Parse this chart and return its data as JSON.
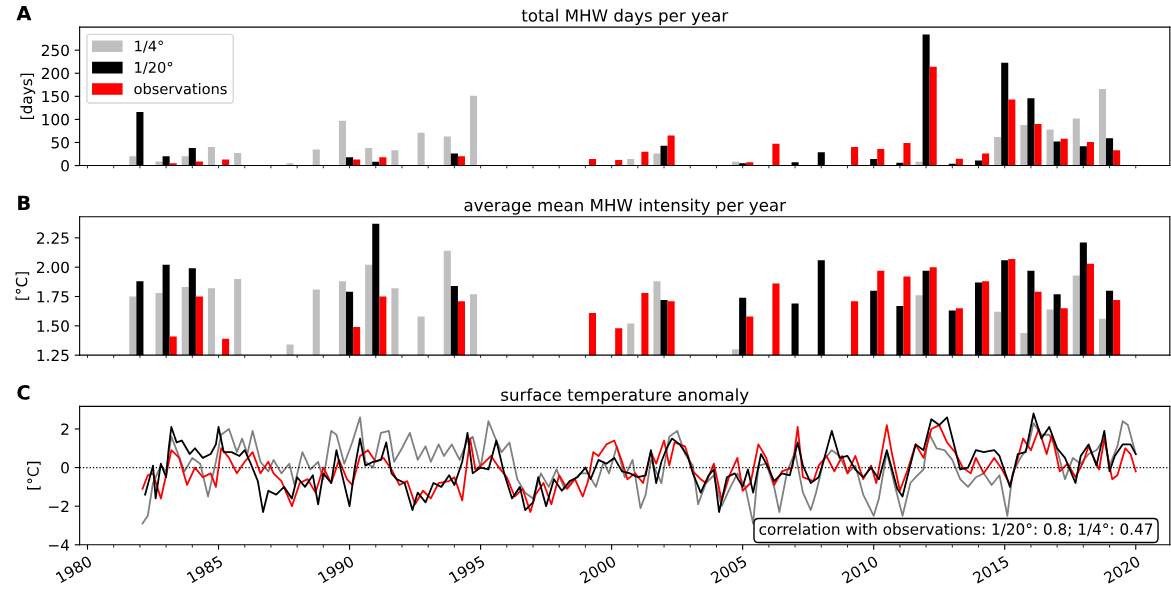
{
  "chart_data": [
    {
      "type": "bar",
      "title": "total MHW days per year",
      "ylabel": "[days]",
      "annotations": [
        "A"
      ],
      "x": [
        1982,
        1983,
        1984,
        1985,
        1986,
        1987,
        1988,
        1989,
        1990,
        1991,
        1992,
        1993,
        1994,
        1995,
        1996,
        1997,
        1998,
        1999,
        2000,
        2001,
        2002,
        2003,
        2004,
        2005,
        2006,
        2007,
        2008,
        2009,
        2010,
        2011,
        2012,
        2013,
        2014,
        2015,
        2016,
        2017,
        2018,
        2019
      ],
      "series": [
        {
          "name": "1/4°",
          "color": "#bfbfbf",
          "values": [
            20,
            9,
            20,
            40,
            27,
            null,
            5,
            35,
            97,
            38,
            33,
            71,
            63,
            151,
            null,
            null,
            null,
            null,
            null,
            14,
            26,
            null,
            null,
            8,
            null,
            null,
            null,
            null,
            null,
            null,
            8,
            null,
            null,
            62,
            88,
            78,
            102,
            166
          ]
        },
        {
          "name": "1/20°",
          "color": "#000000",
          "values": [
            116,
            20,
            38,
            null,
            null,
            null,
            null,
            null,
            18,
            8,
            null,
            null,
            26,
            null,
            null,
            null,
            null,
            null,
            null,
            null,
            43,
            null,
            null,
            5,
            null,
            7,
            29,
            null,
            14,
            6,
            284,
            4,
            11,
            223,
            146,
            52,
            42,
            59
          ]
        },
        {
          "name": "observations",
          "color": "#ff0000",
          "values": [
            null,
            5,
            9,
            13,
            null,
            null,
            null,
            null,
            13,
            18,
            null,
            null,
            20,
            null,
            null,
            null,
            null,
            14,
            12,
            30,
            65,
            null,
            null,
            7,
            47,
            null,
            null,
            40,
            36,
            49,
            214,
            15,
            26,
            143,
            90,
            58,
            51,
            33
          ]
        }
      ],
      "ylim": [
        0,
        300
      ],
      "yticks": [
        0,
        50,
        100,
        150,
        200,
        250
      ],
      "xlim": [
        1979.7,
        2021.3
      ],
      "xticks": [
        {
          "value": 1980,
          "label": null
        },
        {
          "value": 1981,
          "label": null
        },
        {
          "value": 1982,
          "label": null
        },
        {
          "value": 1983,
          "label": null
        },
        {
          "value": 1984,
          "label": null
        },
        {
          "value": 1985,
          "label": null
        },
        {
          "value": 1986,
          "label": null
        },
        {
          "value": 1987,
          "label": null
        },
        {
          "value": 1988,
          "label": null
        },
        {
          "value": 1989,
          "label": null
        },
        {
          "value": 1990,
          "label": null
        },
        {
          "value": 1991,
          "label": null
        },
        {
          "value": 1992,
          "label": null
        },
        {
          "value": 1993,
          "label": null
        },
        {
          "value": 1994,
          "label": null
        },
        {
          "value": 1995,
          "label": null
        },
        {
          "value": 1996,
          "label": null
        },
        {
          "value": 1997,
          "label": null
        },
        {
          "value": 1998,
          "label": null
        },
        {
          "value": 1999,
          "label": null
        },
        {
          "value": 2000,
          "label": null
        },
        {
          "value": 2001,
          "label": null
        },
        {
          "value": 2002,
          "label": null
        },
        {
          "value": 2003,
          "label": null
        },
        {
          "value": 2004,
          "label": null
        },
        {
          "value": 2005,
          "label": null
        },
        {
          "value": 2006,
          "label": null
        },
        {
          "value": 2007,
          "label": null
        },
        {
          "value": 2008,
          "label": null
        },
        {
          "value": 2009,
          "label": null
        },
        {
          "value": 2010,
          "label": null
        },
        {
          "value": 2011,
          "label": null
        },
        {
          "value": 2012,
          "label": null
        },
        {
          "value": 2013,
          "label": null
        },
        {
          "value": 2014,
          "label": null
        },
        {
          "value": 2015,
          "label": null
        },
        {
          "value": 2016,
          "label": null
        },
        {
          "value": 2017,
          "label": null
        },
        {
          "value": 2018,
          "label": null
        },
        {
          "value": 2019,
          "label": null
        },
        {
          "value": 2020,
          "label": null
        }
      ],
      "tick_labels": "y",
      "legend": "top left"
    },
    {
      "type": "bar",
      "title": "average mean MHW intensity per year",
      "ylabel": "[°C]",
      "annotations": [
        "B"
      ],
      "x": [
        1982,
        1983,
        1984,
        1985,
        1986,
        1987,
        1988,
        1989,
        1990,
        1991,
        1992,
        1993,
        1994,
        1995,
        1996,
        1997,
        1998,
        1999,
        2000,
        2001,
        2002,
        2003,
        2004,
        2005,
        2006,
        2007,
        2008,
        2009,
        2010,
        2011,
        2012,
        2013,
        2014,
        2015,
        2016,
        2017,
        2018,
        2019
      ],
      "series": [
        {
          "color": "#bfbfbf",
          "values": [
            1.75,
            1.78,
            1.83,
            1.82,
            1.9,
            null,
            1.34,
            1.81,
            1.88,
            2.02,
            1.82,
            1.58,
            2.14,
            1.77,
            null,
            null,
            null,
            null,
            null,
            1.52,
            1.88,
            null,
            null,
            1.3,
            null,
            null,
            null,
            null,
            null,
            null,
            1.76,
            null,
            null,
            1.62,
            1.44,
            1.64,
            1.93,
            1.56
          ]
        },
        {
          "color": "#000000",
          "values": [
            1.88,
            2.02,
            1.99,
            null,
            null,
            null,
            null,
            null,
            1.79,
            2.37,
            null,
            null,
            1.84,
            null,
            null,
            null,
            null,
            null,
            null,
            null,
            1.72,
            null,
            null,
            1.74,
            null,
            1.69,
            2.06,
            null,
            1.8,
            1.67,
            1.97,
            1.63,
            1.87,
            2.06,
            1.97,
            1.77,
            2.21,
            1.8
          ]
        },
        {
          "color": "#ff0000",
          "values": [
            null,
            1.41,
            1.75,
            1.39,
            null,
            null,
            null,
            null,
            1.49,
            1.75,
            null,
            null,
            1.71,
            null,
            null,
            null,
            null,
            1.61,
            1.48,
            1.78,
            1.71,
            null,
            null,
            1.58,
            1.86,
            null,
            null,
            1.71,
            1.97,
            1.92,
            2.0,
            1.65,
            1.88,
            2.07,
            1.79,
            1.65,
            2.03,
            1.72
          ]
        }
      ],
      "ylim": [
        1.25,
        2.43
      ],
      "yticks": [
        {
          "value": 1.25,
          "label": "1.25"
        },
        {
          "value": 1.5,
          "label": "1.50"
        },
        {
          "value": 1.75,
          "label": "1.75"
        },
        {
          "value": 2.0,
          "label": "2.00"
        },
        {
          "value": 2.25,
          "label": "2.25"
        }
      ],
      "xlim": [
        1979.7,
        2021.3
      ],
      "xticks": [
        {
          "value": 1980,
          "label": null
        },
        {
          "value": 1981,
          "label": null
        },
        {
          "value": 1982,
          "label": null
        },
        {
          "value": 1983,
          "label": null
        },
        {
          "value": 1984,
          "label": null
        },
        {
          "value": 1985,
          "label": null
        },
        {
          "value": 1986,
          "label": null
        },
        {
          "value": 1987,
          "label": null
        },
        {
          "value": 1988,
          "label": null
        },
        {
          "value": 1989,
          "label": null
        },
        {
          "value": 1990,
          "label": null
        },
        {
          "value": 1991,
          "label": null
        },
        {
          "value": 1992,
          "label": null
        },
        {
          "value": 1993,
          "label": null
        },
        {
          "value": 1994,
          "label": null
        },
        {
          "value": 1995,
          "label": null
        },
        {
          "value": 1996,
          "label": null
        },
        {
          "value": 1997,
          "label": null
        },
        {
          "value": 1998,
          "label": null
        },
        {
          "value": 1999,
          "label": null
        },
        {
          "value": 2000,
          "label": null
        },
        {
          "value": 2001,
          "label": null
        },
        {
          "value": 2002,
          "label": null
        },
        {
          "value": 2003,
          "label": null
        },
        {
          "value": 2004,
          "label": null
        },
        {
          "value": 2005,
          "label": null
        },
        {
          "value": 2006,
          "label": null
        },
        {
          "value": 2007,
          "label": null
        },
        {
          "value": 2008,
          "label": null
        },
        {
          "value": 2009,
          "label": null
        },
        {
          "value": 2010,
          "label": null
        },
        {
          "value": 2011,
          "label": null
        },
        {
          "value": 2012,
          "label": null
        },
        {
          "value": 2013,
          "label": null
        },
        {
          "value": 2014,
          "label": null
        },
        {
          "value": 2015,
          "label": null
        },
        {
          "value": 2016,
          "label": null
        },
        {
          "value": 2017,
          "label": null
        },
        {
          "value": 2018,
          "label": null
        },
        {
          "value": 2019,
          "label": null
        },
        {
          "value": 2020,
          "label": null
        }
      ],
      "tick_labels": "y"
    },
    {
      "type": "line",
      "title": "surface temperature anomaly",
      "ylabel": "[°C]",
      "annotations": [
        "C",
        "correlation with observations: 1/20°: 0.8; 1/4°: 0.47"
      ],
      "series": [
        {
          "color": "#808080",
          "x": [
            1982.1,
            1982.3,
            1982.5,
            1982.8,
            1983.0,
            1983.2,
            1983.4,
            1983.7,
            1984.0,
            1984.3,
            1984.6,
            1984.9,
            1985.1,
            1985.4,
            1985.7,
            1985.9,
            1986.1,
            1986.3,
            1986.6,
            1986.9,
            1987.1,
            1987.4,
            1987.7,
            1987.9,
            1988.2,
            1988.5,
            1988.8,
            1989.0,
            1989.3,
            1989.5,
            1989.8,
            1990.1,
            1990.4,
            1990.6,
            1990.9,
            1991.2,
            1991.5,
            1991.7,
            1992.0,
            1992.3,
            1992.6,
            1992.9,
            1993.1,
            1993.4,
            1993.6,
            1993.9,
            1994.2,
            1994.5,
            1994.7,
            1995.0,
            1995.3,
            1995.6,
            1995.8,
            1996.1,
            1996.4,
            1996.7,
            1997.0,
            1997.3,
            1997.6,
            1997.9,
            1998.2,
            1998.5,
            1998.8,
            1999.1,
            1999.4,
            1999.7,
            1999.9,
            2000.2,
            2000.5,
            2000.8,
            2001.1,
            2001.3,
            2001.5,
            2001.9,
            2002.2,
            2002.5,
            2002.8,
            2003.1,
            2003.3,
            2003.6,
            2003.9,
            2004.2,
            2004.5,
            2004.8,
            2005.1,
            2005.4,
            2005.6,
            2005.9,
            2006.2,
            2006.4,
            2006.7,
            2007.0,
            2007.3,
            2007.6,
            2007.8,
            2008.1,
            2008.4,
            2008.7,
            2009.0,
            2009.3,
            2009.6,
            2010.0,
            2010.2,
            2010.5,
            2010.8,
            2011.1,
            2011.4,
            2011.6,
            2011.9,
            2012.1,
            2012.4,
            2012.7,
            2013.0,
            2013.3,
            2013.6,
            2013.9,
            2014.2,
            2014.5,
            2014.8,
            2015.1,
            2015.3,
            2015.6,
            2015.9,
            2016.1,
            2016.4,
            2016.7,
            2017.0,
            2017.3,
            2017.6,
            2017.9,
            2018.2,
            2018.5,
            2018.8,
            2019.0,
            2019.3,
            2019.5,
            2019.7,
            2020.0
          ],
          "values": [
            -2.9,
            -2.5,
            -0.8,
            0.1,
            -0.2,
            1.6,
            0.9,
            -0.2,
            0.5,
            0.2,
            -1.5,
            0.3,
            1.7,
            2.0,
            0.8,
            1.5,
            0.7,
            1.9,
            0.3,
            -0.2,
            0.4,
            -0.3,
            0.2,
            -0.9,
            0.8,
            -0.1,
            0.3,
            -0.6,
            1.9,
            1.7,
            0.2,
            1.3,
            2.6,
            0.3,
            0.0,
            1.8,
            1.9,
            0.3,
            1.0,
            1.8,
            0.4,
            1.1,
            0.3,
            1.2,
            0.6,
            1.2,
            0.4,
            1.4,
            1.6,
            0.0,
            2.4,
            1.4,
            0.8,
            1.3,
            -0.6,
            -1.3,
            -1.6,
            -0.3,
            -1.0,
            -0.1,
            -1.1,
            -0.7,
            -0.3,
            -0.3,
            -1.0,
            0.3,
            -0.3,
            1.1,
            -0.5,
            0.4,
            -2.1,
            -1.4,
            0.4,
            -0.8,
            1.6,
            1.9,
            0.7,
            0.1,
            -1.9,
            -0.8,
            -0.4,
            -2.0,
            -1.1,
            -0.3,
            -1.0,
            -2.9,
            0.1,
            0.2,
            -1.0,
            -2.3,
            -0.2,
            0.8,
            -1.3,
            -2.2,
            -1.3,
            0.4,
            0.9,
            0.6,
            -0.3,
            0.1,
            -1.4,
            -2.5,
            -1.6,
            0.8,
            -0.9,
            -2.5,
            -0.8,
            -0.5,
            -0.1,
            1.8,
            1.0,
            0.9,
            0.4,
            -0.6,
            -1.0,
            -0.5,
            -0.3,
            -0.9,
            -0.4,
            -2.5,
            -0.3,
            0.5,
            1.1,
            2.3,
            1.7,
            1.7,
            0.9,
            -0.6,
            0.5,
            0.2,
            0.7,
            0.9,
            1.5,
            0.1,
            1.1,
            2.4,
            2.2,
            0.7
          ]
        },
        {
          "color": "#ff0000",
          "x": [
            1982.1,
            1982.3,
            1982.5,
            1982.8,
            1983.0,
            1983.2,
            1983.5,
            1983.8,
            1984.1,
            1984.4,
            1984.7,
            1984.9,
            1985.1,
            1985.4,
            1985.7,
            1986.0,
            1986.3,
            1986.6,
            1986.9,
            1987.1,
            1987.4,
            1987.8,
            1988.1,
            1988.4,
            1988.7,
            1989.0,
            1989.3,
            1989.6,
            1989.9,
            1990.1,
            1990.4,
            1990.7,
            1991.0,
            1991.3,
            1991.6,
            1991.9,
            1992.2,
            1992.5,
            1992.8,
            1993.1,
            1993.4,
            1993.8,
            1994.0,
            1994.3,
            1994.6,
            1994.8,
            1995.1,
            1995.4,
            1995.7,
            1996.0,
            1996.3,
            1996.6,
            1996.9,
            1997.1,
            1997.4,
            1997.7,
            1998.0,
            1998.3,
            1998.6,
            1998.9,
            1999.1,
            1999.3,
            1999.5,
            1999.8,
            2000.1,
            2000.4,
            2000.6,
            2000.9,
            2001.2,
            2001.5,
            2001.7,
            2002.0,
            2002.2,
            2002.4,
            2002.8,
            2003.1,
            2003.4,
            2003.6,
            2003.9,
            2004.2,
            2004.5,
            2004.8,
            2005.0,
            2005.3,
            2005.6,
            2005.9,
            2006.2,
            2006.5,
            2006.9,
            2007.1,
            2007.3,
            2007.7,
            2007.9,
            2008.2,
            2008.5,
            2008.8,
            2009.0,
            2009.3,
            2009.6,
            2009.9,
            2010.1,
            2010.5,
            2010.7,
            2011.0,
            2011.3,
            2011.6,
            2011.9,
            2012.2,
            2012.5,
            2012.8,
            2013.1,
            2013.4,
            2013.7,
            2013.9,
            2014.2,
            2014.6,
            2014.9,
            2015.2,
            2015.5,
            2015.7,
            2016.0,
            2016.3,
            2016.6,
            2016.8,
            2017.1,
            2017.4,
            2017.7,
            2018.0,
            2018.2,
            2018.6,
            2018.8,
            2019.1,
            2019.3,
            2019.6,
            2019.8,
            2020.0
          ],
          "values": [
            -1.1,
            -0.4,
            -0.3,
            -1.6,
            -0.4,
            0.9,
            0.5,
            -0.9,
            0.0,
            -0.5,
            -0.3,
            -1.0,
            1.0,
            0.5,
            -0.3,
            0.3,
            0.8,
            -0.3,
            0.3,
            -0.3,
            -0.7,
            -2.0,
            -0.8,
            -0.6,
            -1.3,
            0.0,
            -0.8,
            0.4,
            -0.6,
            -0.9,
            0.6,
            0.9,
            0.3,
            0.5,
            -0.1,
            -0.9,
            -0.7,
            -1.9,
            -1.2,
            -1.6,
            -0.8,
            -0.7,
            -0.5,
            -1.7,
            1.5,
            -0.1,
            0.2,
            0.6,
            0.0,
            -0.5,
            -1.5,
            -1.1,
            -2.3,
            -1.4,
            -0.8,
            -1.9,
            -0.4,
            -1.1,
            -0.6,
            -1.5,
            -0.7,
            0.8,
            0.6,
            1.2,
            1.4,
            0.3,
            -0.6,
            -0.3,
            -0.8,
            0.8,
            0.2,
            1.4,
            0.1,
            1.3,
            1.1,
            -0.2,
            -0.6,
            -0.8,
            0.2,
            -1.7,
            -0.4,
            0.5,
            -1.2,
            -0.8,
            1.2,
            0.5,
            -0.9,
            -0.2,
            0.0,
            2.1,
            -0.5,
            -0.7,
            0.1,
            0.6,
            -0.2,
            0.6,
            -0.3,
            0.6,
            -0.6,
            0.1,
            -0.8,
            2.2,
            0.7,
            -1.2,
            -0.1,
            1.2,
            0.5,
            2.0,
            2.2,
            1.3,
            0.8,
            0.0,
            -0.3,
            0.5,
            -0.3,
            0.5,
            -0.1,
            -0.9,
            0.5,
            1.5,
            0.9,
            2.0,
            0.7,
            1.7,
            -0.2,
            0.2,
            -0.5,
            0.3,
            1.1,
            -0.1,
            1.5,
            -0.6,
            -0.4,
            1.0,
            0.7,
            -0.2
          ]
        },
        {
          "color": "#000000",
          "x": [
            1982.2,
            1982.5,
            1982.6,
            1982.8,
            1983.0,
            1983.1,
            1983.2,
            1983.4,
            1983.6,
            1983.9,
            1984.1,
            1984.4,
            1984.7,
            1984.9,
            1985.0,
            1985.2,
            1985.5,
            1985.8,
            1986.0,
            1986.2,
            1986.5,
            1986.7,
            1986.9,
            1987.2,
            1987.5,
            1987.8,
            1988.0,
            1988.3,
            1988.6,
            1988.8,
            1989.0,
            1989.3,
            1989.5,
            1989.7,
            1990.0,
            1990.2,
            1990.4,
            1990.6,
            1990.9,
            1991.2,
            1991.4,
            1991.6,
            1991.8,
            1992.1,
            1992.4,
            1992.6,
            1992.9,
            1993.2,
            1993.5,
            1993.8,
            1994.0,
            1994.3,
            1994.5,
            1994.7,
            1995.0,
            1995.3,
            1995.6,
            1995.9,
            1996.2,
            1996.5,
            1996.7,
            1997.0,
            1997.2,
            1997.5,
            1997.8,
            1998.1,
            1998.4,
            1998.7,
            1999.0,
            1999.2,
            1999.5,
            1999.8,
            2000.1,
            2000.4,
            2000.7,
            2001.0,
            2001.3,
            2001.5,
            2001.7,
            2001.9,
            2002.1,
            2002.3,
            2002.6,
            2002.9,
            2003.1,
            2003.4,
            2003.7,
            2003.9,
            2004.1,
            2004.4,
            2004.7,
            2005.0,
            2005.2,
            2005.4,
            2005.7,
            2005.9,
            2006.2,
            2006.5,
            2006.8,
            2007.1,
            2007.3,
            2007.6,
            2007.9,
            2008.1,
            2008.4,
            2008.7,
            2009.0,
            2009.3,
            2009.6,
            2009.9,
            2010.2,
            2010.5,
            2010.9,
            2011.1,
            2011.3,
            2011.6,
            2011.9,
            2012.2,
            2012.5,
            2012.8,
            2013.1,
            2013.3,
            2013.6,
            2013.9,
            2014.2,
            2014.6,
            2014.8,
            2015.2,
            2015.5,
            2015.8,
            2016.1,
            2016.4,
            2016.7,
            2017.0,
            2017.3,
            2017.7,
            2017.9,
            2018.2,
            2018.5,
            2018.8,
            2019.0,
            2019.2,
            2019.5,
            2019.8,
            2020.0
          ],
          "values": [
            -1.4,
            0.1,
            -1.6,
            0.2,
            -0.5,
            1.0,
            2.1,
            1.3,
            1.4,
            0.7,
            1.0,
            0.5,
            0.7,
            1.2,
            2.1,
            0.8,
            0.8,
            0.6,
            0.9,
            0.3,
            -0.7,
            -2.3,
            -1.2,
            -1.4,
            -1.0,
            -1.6,
            -0.5,
            -1.0,
            -0.4,
            -1.9,
            -0.3,
            -0.8,
            0.9,
            -0.3,
            -2.0,
            0.0,
            1.5,
            0.1,
            0.3,
            0.4,
            1.3,
            -0.3,
            -0.6,
            -0.8,
            -2.2,
            -1.3,
            -1.8,
            -0.8,
            -1.0,
            -0.4,
            -0.9,
            0.3,
            1.8,
            -0.3,
            0.0,
            -0.1,
            1.4,
            -0.3,
            -1.6,
            -1.0,
            -2.2,
            -1.8,
            -0.5,
            -2.0,
            -0.6,
            -1.2,
            -0.7,
            -0.5,
            0.0,
            -0.6,
            0.4,
            0.2,
            0.5,
            -0.2,
            -0.3,
            -0.5,
            -0.4,
            0.9,
            -0.8,
            0.3,
            1.0,
            1.5,
            1.2,
            0.6,
            -0.3,
            -1.3,
            -0.4,
            -0.1,
            -2.3,
            -0.5,
            -0.3,
            -1.0,
            -0.1,
            -1.3,
            0.7,
            0.2,
            -0.7,
            -0.3,
            -0.4,
            1.3,
            0.1,
            -0.8,
            -0.5,
            0.4,
            1.9,
            0.5,
            0.6,
            -0.1,
            -0.5,
            0.0,
            -0.6,
            0.9,
            -1.1,
            -1.5,
            -0.4,
            1.2,
            0.9,
            2.5,
            2.2,
            2.6,
            1.0,
            -0.1,
            0.0,
            0.9,
            0.8,
            0.9,
            0.6,
            -1.0,
            0.7,
            0.8,
            2.8,
            1.5,
            2.1,
            1.0,
            0.5,
            -0.8,
            0.6,
            1.2,
            0.1,
            1.9,
            -0.2,
            0.6,
            1.2,
            1.2,
            0.7
          ]
        }
      ],
      "ylim": [
        -4,
        3.17
      ],
      "yticks": [
        {
          "value": -4,
          "label": "−4"
        },
        {
          "value": -2,
          "label": "−2"
        },
        0,
        2
      ],
      "xlim": [
        1979.7,
        2021.3
      ],
      "xticks": [
        1980,
        {
          "value": 1981,
          "label": null
        },
        {
          "value": 1982,
          "label": null
        },
        {
          "value": 1983,
          "label": null
        },
        {
          "value": 1984,
          "label": null
        },
        1985,
        {
          "value": 1986,
          "label": null
        },
        {
          "value": 1987,
          "label": null
        },
        {
          "value": 1988,
          "label": null
        },
        {
          "value": 1989,
          "label": null
        },
        1990,
        {
          "value": 1991,
          "label": null
        },
        {
          "value": 1992,
          "label": null
        },
        {
          "value": 1993,
          "label": null
        },
        {
          "value": 1994,
          "label": null
        },
        1995,
        {
          "value": 1996,
          "label": null
        },
        {
          "value": 1997,
          "label": null
        },
        {
          "value": 1998,
          "label": null
        },
        {
          "value": 1999,
          "label": null
        },
        2000,
        {
          "value": 2001,
          "label": null
        },
        {
          "value": 2002,
          "label": null
        },
        {
          "value": 2003,
          "label": null
        },
        {
          "value": 2004,
          "label": null
        },
        2005,
        {
          "value": 2006,
          "label": null
        },
        {
          "value": 2007,
          "label": null
        },
        {
          "value": 2008,
          "label": null
        },
        {
          "value": 2009,
          "label": null
        },
        2010,
        {
          "value": 2011,
          "label": null
        },
        {
          "value": 2012,
          "label": null
        },
        {
          "value": 2013,
          "label": null
        },
        {
          "value": 2014,
          "label": null
        },
        2015,
        {
          "value": 2016,
          "label": null
        },
        {
          "value": 2017,
          "label": null
        },
        {
          "value": 2018,
          "label": null
        },
        {
          "value": 2019,
          "label": null
        },
        2020
      ],
      "ref_lines": [
        {
          "axis": "y",
          "value": 0,
          "color": "#000000",
          "line_style": "dotted"
        }
      ]
    }
  ]
}
